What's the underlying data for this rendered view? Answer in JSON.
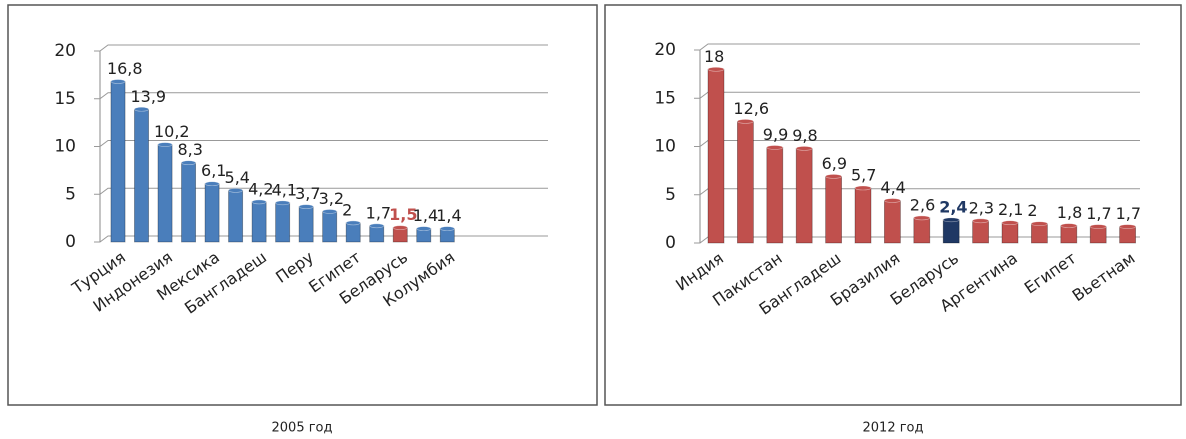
{
  "chart_data": [
    {
      "type": "bar",
      "caption": "2005 год",
      "categories": [
        "Турция",
        null,
        "Индонезия",
        null,
        "Мексика",
        null,
        "Бангладеш",
        null,
        "Перу",
        null,
        "Египет",
        null,
        "Беларусь",
        null,
        "Колумбия"
      ],
      "values": [
        16.8,
        13.9,
        10.2,
        8.3,
        6.1,
        5.4,
        4.2,
        4.1,
        3.7,
        3.2,
        2,
        1.7,
        1.5,
        1.4,
        1.4
      ],
      "value_labels": [
        "16,8",
        "13,9",
        "10,2",
        "8,3",
        "6,1",
        "5,4",
        "4,2",
        "4,1",
        "3,7",
        "3,2",
        "2",
        "1,7",
        "1,5",
        "1,4",
        "1,4"
      ],
      "color": "#4a7ebb",
      "colors": [
        "#4a7ebb",
        "#4a7ebb",
        "#4a7ebb",
        "#4a7ebb",
        "#4a7ebb",
        "#4a7ebb",
        "#4a7ebb",
        "#4a7ebb",
        "#4a7ebb",
        "#4a7ebb",
        "#4a7ebb",
        "#4a7ebb",
        "#c0504d",
        "#4a7ebb",
        "#4a7ebb"
      ],
      "ylim": [
        0,
        20
      ],
      "yticks": [
        0,
        5,
        10,
        15,
        20
      ],
      "grid": true
    },
    {
      "type": "bar",
      "caption": "2012 год",
      "categories": [
        "Индия",
        null,
        "Пакистан",
        null,
        "Бангладеш",
        null,
        "Бразилия",
        null,
        "Беларусь",
        null,
        "Аргентина",
        null,
        "Египет",
        null,
        "Вьетнам"
      ],
      "values": [
        18,
        12.6,
        9.9,
        9.8,
        6.9,
        5.7,
        4.4,
        2.6,
        2.4,
        2.3,
        2.1,
        2,
        1.8,
        1.7,
        1.7
      ],
      "value_labels": [
        "18",
        "12,6",
        "9,9",
        "9,8",
        "6,9",
        "5,7",
        "4,4",
        "2,6",
        "2,4",
        "2,3",
        "2,1",
        "2",
        "1,8",
        "1,7",
        "1,7"
      ],
      "color": "#c0504d",
      "colors": [
        "#c0504d",
        "#c0504d",
        "#c0504d",
        "#c0504d",
        "#c0504d",
        "#c0504d",
        "#c0504d",
        "#c0504d",
        "#1f3864",
        "#c0504d",
        "#c0504d",
        "#c0504d",
        "#c0504d",
        "#c0504d",
        "#c0504d"
      ],
      "ylim": [
        0,
        20
      ],
      "yticks": [
        0,
        5,
        10,
        15,
        20
      ],
      "grid": true
    }
  ]
}
